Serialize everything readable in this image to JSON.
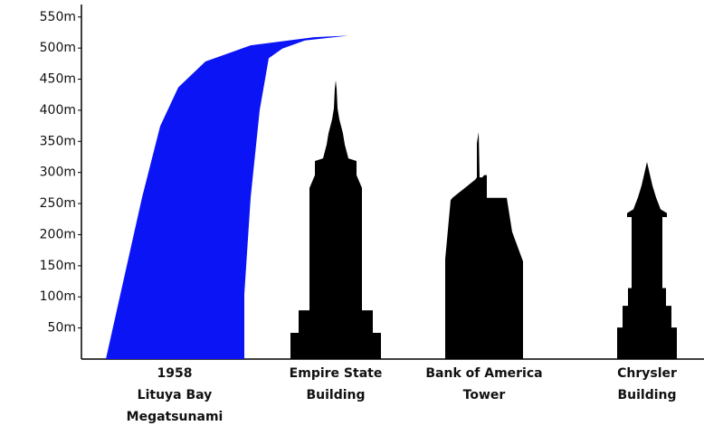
{
  "chart_data": {
    "type": "silhouette",
    "categories": [
      [
        "1958",
        "Lituya Bay",
        "Megatsunami"
      ],
      [
        "Empire State",
        "Building"
      ],
      [
        "Bank of America",
        "Tower"
      ],
      [
        "Chrysler",
        "Building"
      ]
    ],
    "values": [
      520,
      448,
      365,
      317
    ],
    "colors": [
      "#0a14f5",
      "#000000",
      "#000000",
      "#000000"
    ],
    "ylim": [
      0,
      570
    ],
    "yticks": [
      {
        "value": 50,
        "label": "50m"
      },
      {
        "value": 100,
        "label": "100m"
      },
      {
        "value": 150,
        "label": "150m"
      },
      {
        "value": 200,
        "label": "200m"
      },
      {
        "value": 250,
        "label": "250m"
      },
      {
        "value": 300,
        "label": "300m"
      },
      {
        "value": 350,
        "label": "350m"
      },
      {
        "value": 400,
        "label": "400m"
      },
      {
        "value": 450,
        "label": "450m"
      },
      {
        "value": 500,
        "label": "500m"
      },
      {
        "value": 550,
        "label": "550m"
      }
    ]
  }
}
